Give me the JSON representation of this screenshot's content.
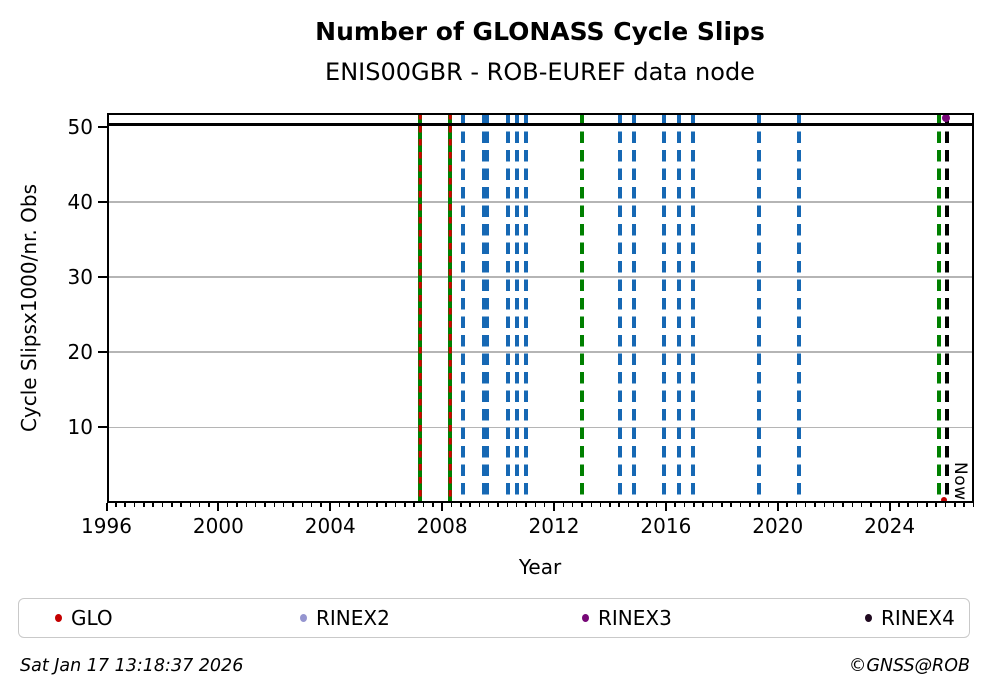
{
  "title": "Number of GLONASS Cycle Slips",
  "subtitle": "ENIS00GBR - ROB-EUREF data node",
  "footer": {
    "timestamp": "Sat Jan 17 13:18:37 2026",
    "copyright": "©GNSS@ROB"
  },
  "legend": {
    "items": [
      {
        "label": "GLO",
        "color": "#c40000"
      },
      {
        "label": "RINEX2",
        "color": "#9595d0"
      },
      {
        "label": "RINEX3",
        "color": "#770877"
      },
      {
        "label": "RINEX4",
        "color": "#200a20"
      }
    ]
  },
  "chart_data": {
    "type": "scatter",
    "title": "Number of GLONASS Cycle Slips",
    "subtitle": "ENIS00GBR - ROB-EUREF data node",
    "xlabel": "Year",
    "ylabel": "Cycle Slipsx1000/nr. Obs",
    "xlim": [
      1996,
      2027
    ],
    "ylim": [
      0,
      51.8
    ],
    "x_ticks": [
      1996,
      2000,
      2004,
      2008,
      2012,
      2016,
      2020,
      2024
    ],
    "y_ticks": [
      10,
      20,
      30,
      40,
      50
    ],
    "x_minor_ticks_per_year": 3,
    "grid": "horizontal-major-only",
    "legend_position": "bottom",
    "clip_line_y": 50.3,
    "now_label": "Now",
    "now_year": 2026.04,
    "events": [
      {
        "year": 2007.22,
        "type": "green-solid-red-dash"
      },
      {
        "year": 2008.28,
        "type": "green-solid-red-dash"
      },
      {
        "year": 2008.74,
        "type": "blue-dash"
      },
      {
        "year": 2009.55,
        "type": "blue-dash-thick"
      },
      {
        "year": 2010.37,
        "type": "blue-dash"
      },
      {
        "year": 2010.67,
        "type": "blue-dash"
      },
      {
        "year": 2010.99,
        "type": "blue-dash"
      },
      {
        "year": 2013.0,
        "type": "green-dash"
      },
      {
        "year": 2014.35,
        "type": "blue-dash"
      },
      {
        "year": 2014.85,
        "type": "blue-dash"
      },
      {
        "year": 2015.92,
        "type": "blue-dash"
      },
      {
        "year": 2016.46,
        "type": "blue-dash"
      },
      {
        "year": 2016.97,
        "type": "blue-dash"
      },
      {
        "year": 2019.33,
        "type": "blue-dash"
      },
      {
        "year": 2020.77,
        "type": "blue-dash"
      },
      {
        "year": 2025.75,
        "type": "green-dash"
      },
      {
        "year": 2026.04,
        "type": "black-dash"
      }
    ],
    "markers": [
      {
        "name": "rinex3-point",
        "x": 2026.0,
        "y": 51.2,
        "r": 4,
        "color": "#770877"
      },
      {
        "name": "glo-point",
        "x": 2025.95,
        "y": 0.35,
        "r": 3,
        "color": "#c40000"
      }
    ],
    "colors": {
      "blue_event": "#1668b4",
      "green_event": "#008000",
      "red_overlay": "#d40000",
      "black_event": "#000000",
      "grid": "#b5b5b5",
      "clip_line": "#000000"
    }
  }
}
